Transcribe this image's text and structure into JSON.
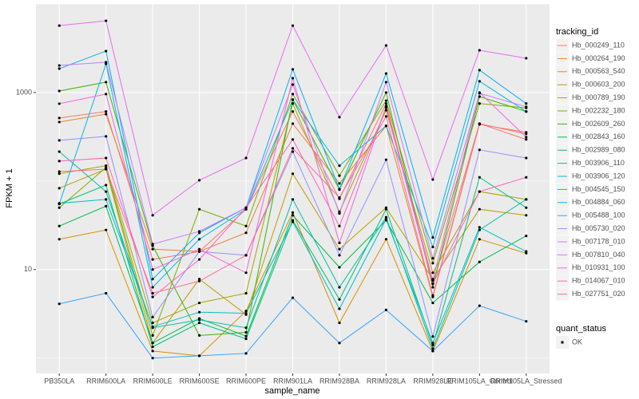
{
  "chart_data": {
    "type": "line",
    "x_label": "sample_name",
    "y_label": "FPKM + 1",
    "categories": [
      "PB350LA",
      "RRIM600LA",
      "RRIM600LE",
      "RRIM600SE",
      "RRIM600PE",
      "RRIM901LA",
      "RRIM928BA",
      "RRIM928LA",
      "RRIM928LE",
      "RRIM105LA_Control",
      "RRIM105LA_Stressed"
    ],
    "log_scale": true,
    "grid": true,
    "ylim": [
      0.67,
      10000
    ],
    "yticks": [
      10,
      1000
    ],
    "legend_position": "right",
    "legend_title": "tracking_id",
    "point_color": "#000000",
    "shape_legend": {
      "title": "quant_status",
      "labels": [
        "OK"
      ]
    },
    "series": [
      {
        "name": "Hb_000249_110",
        "color": "#F8766D",
        "values": [
          515,
          610,
          13,
          16,
          48,
          610,
          63,
          750,
          6.9,
          445,
          295
        ]
      },
      {
        "name": "Hb_000264_190",
        "color": "#EA8331",
        "values": [
          464,
          570,
          17,
          16,
          26,
          445,
          94,
          420,
          4.9,
          436,
          355
        ]
      },
      {
        "name": "Hb_000563_540",
        "color": "#D89000",
        "values": [
          22,
          28,
          1.2,
          1.06,
          3.4,
          44,
          2.5,
          22,
          1.2,
          22,
          15.3
        ]
      },
      {
        "name": "Hb_000603_200",
        "color": "#C09B00",
        "values": [
          83,
          136,
          1.48,
          7.8,
          3.1,
          121,
          17,
          50,
          7.8,
          48,
          41
        ]
      },
      {
        "name": "Hb_000789_190",
        "color": "#A3A500",
        "values": [
          121,
          149,
          2.5,
          4.2,
          5.4,
          750,
          45,
          630,
          9.2,
          76,
          62
        ]
      },
      {
        "name": "Hb_002232_180",
        "color": "#7CAE00",
        "values": [
          50,
          142,
          1.8,
          48,
          31,
          960,
          115,
          810,
          11.8,
          750,
          670
        ]
      },
      {
        "name": "Hb_002609_260",
        "color": "#39B600",
        "values": [
          1040,
          1310,
          18.6,
          1.8,
          1.95,
          830,
          80,
          1000,
          6.3,
          900,
          610
        ]
      },
      {
        "name": "Hb_002843_160",
        "color": "#00BB4E",
        "values": [
          31,
          52,
          1.48,
          2.8,
          1.77,
          41,
          10.6,
          36,
          4.2,
          12.2,
          24
        ]
      },
      {
        "name": "Hb_002989_080",
        "color": "#00BF7D",
        "values": [
          55,
          90,
          1.34,
          2.5,
          1.65,
          36,
          4.6,
          48,
          1.4,
          110,
          50
        ]
      },
      {
        "name": "Hb_003906_110",
        "color": "#00C1A3",
        "values": [
          215,
          76,
          2.2,
          2.7,
          2.2,
          62,
          6.3,
          39,
          1.28,
          28,
          62
        ]
      },
      {
        "name": "Hb_003906_120",
        "color": "#00BFC4",
        "values": [
          56,
          62,
          2.26,
          3.3,
          3.2,
          34.6,
          3.6,
          37,
          1.48,
          30,
          16
        ]
      },
      {
        "name": "Hb_004545_150",
        "color": "#00BAE0",
        "values": [
          55,
          2110,
          6.3,
          22,
          48,
          830,
          149,
          420,
          18,
          1340,
          610
        ]
      },
      {
        "name": "Hb_004884_060",
        "color": "#00B0F6",
        "values": [
          1860,
          2940,
          7.8,
          26,
          50,
          1830,
          81,
          1640,
          23,
          1790,
          750
        ]
      },
      {
        "name": "Hb_005488_100",
        "color": "#35A2FF",
        "values": [
          4.1,
          5.4,
          1.0,
          1.06,
          1.13,
          4.8,
          1.48,
          3.5,
          1.2,
          3.9,
          2.6
        ]
      },
      {
        "name": "Hb_005730_020",
        "color": "#9590FF",
        "values": [
          288,
          320,
          2.9,
          16,
          14.5,
          215,
          14.5,
          174,
          1.75,
          225,
          182
        ]
      },
      {
        "name": "Hb_007178_010",
        "color": "#C77CFF",
        "values": [
          2020,
          2200,
          19.4,
          27,
          50,
          1230,
          43,
          1310,
          13.4,
          980,
          690
        ]
      },
      {
        "name": "Hb_007810_040",
        "color": "#E76BF3",
        "values": [
          5700,
          6460,
          41,
          102,
          182,
          5700,
          526,
          3400,
          104,
          3000,
          2440
        ]
      },
      {
        "name": "Hb_010931_100",
        "color": "#FA62DB",
        "values": [
          748,
          960,
          10,
          17,
          9.2,
          1450,
          20,
          700,
          7.5,
          1000,
          313
        ]
      },
      {
        "name": "Hb_014067_010",
        "color": "#FF62BC",
        "values": [
          168,
          182,
          4.9,
          13,
          50,
          295,
          31,
          675,
          6.9,
          76,
          110
        ]
      },
      {
        "name": "Hb_027751_020",
        "color": "#FF6C91",
        "values": [
          128,
          136,
          5.4,
          7.4,
          14.5,
          234,
          65,
          537,
          5.1,
          445,
          340
        ]
      }
    ]
  }
}
